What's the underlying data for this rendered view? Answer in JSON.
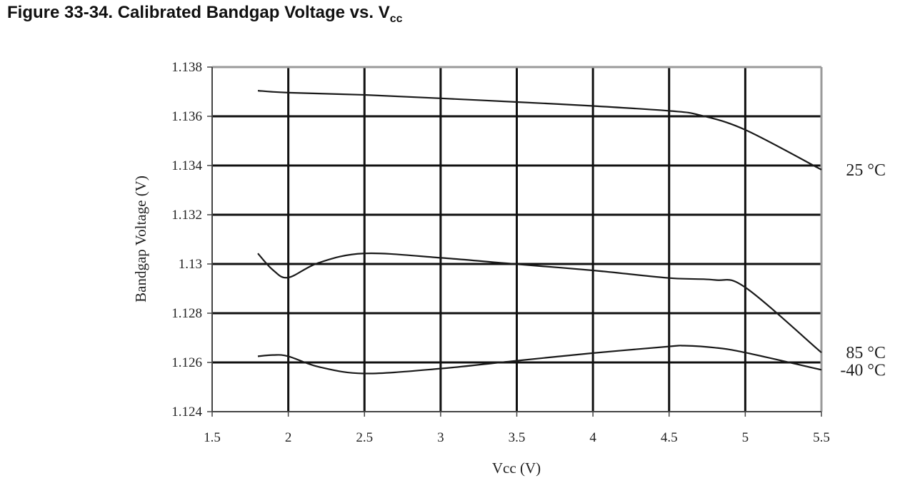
{
  "title": {
    "prefix": "Figure 33-34.  Calibrated Bandgap Voltage vs. V",
    "subscript": "cc"
  },
  "chart_data": {
    "type": "line",
    "title": "Figure 33-34.  Calibrated Bandgap Voltage vs. Vcc",
    "xlabel": "Vcc (V)",
    "ylabel": "Bandgap Voltage (V)",
    "xlim": [
      1.5,
      5.5
    ],
    "ylim": [
      1.124,
      1.138
    ],
    "xticks": [
      1.5,
      2,
      2.5,
      3,
      3.5,
      4,
      4.5,
      5,
      5.5
    ],
    "xtick_labels": [
      "1.5",
      "2",
      "2.5",
      "3",
      "3.5",
      "4",
      "4.5",
      "5",
      "5.5"
    ],
    "yticks": [
      1.124,
      1.126,
      1.128,
      1.13,
      1.132,
      1.134,
      1.136,
      1.138
    ],
    "ytick_labels": [
      "1.124",
      "1.126",
      "1.128",
      "1.13",
      "1.132",
      "1.134",
      "1.136",
      "1.138"
    ],
    "grid": true,
    "legend": "labels at right end of each line",
    "series": [
      {
        "name": "25 °C",
        "x": [
          1.8,
          2.0,
          2.5,
          3.0,
          3.5,
          4.0,
          4.5,
          4.7,
          5.0,
          5.5
        ],
        "y": [
          1.13704,
          1.13696,
          1.13687,
          1.13673,
          1.13658,
          1.13642,
          1.13622,
          1.13605,
          1.13545,
          1.13383
        ]
      },
      {
        "name": "85 °C",
        "x": [
          1.8,
          1.9,
          2.0,
          2.2,
          2.5,
          3.0,
          3.5,
          4.0,
          4.5,
          4.8,
          5.0,
          5.5
        ],
        "y": [
          1.13043,
          1.12975,
          1.12945,
          1.13005,
          1.13043,
          1.13025,
          1.12999,
          1.12974,
          1.12943,
          1.12935,
          1.12905,
          1.1264
        ]
      },
      {
        "name": "-40 °C",
        "x": [
          1.8,
          1.9,
          2.0,
          2.2,
          2.5,
          3.0,
          3.5,
          4.0,
          4.5,
          4.6,
          4.8,
          5.0,
          5.5
        ],
        "y": [
          1.12625,
          1.1263,
          1.12625,
          1.12582,
          1.12555,
          1.12575,
          1.12607,
          1.12638,
          1.12665,
          1.12668,
          1.1266,
          1.1264,
          1.1257
        ]
      }
    ]
  },
  "colors": {
    "gridline": "#111111",
    "frame": "#9a9a9a",
    "series_line": "#1a1a1a",
    "text": "#222222"
  }
}
